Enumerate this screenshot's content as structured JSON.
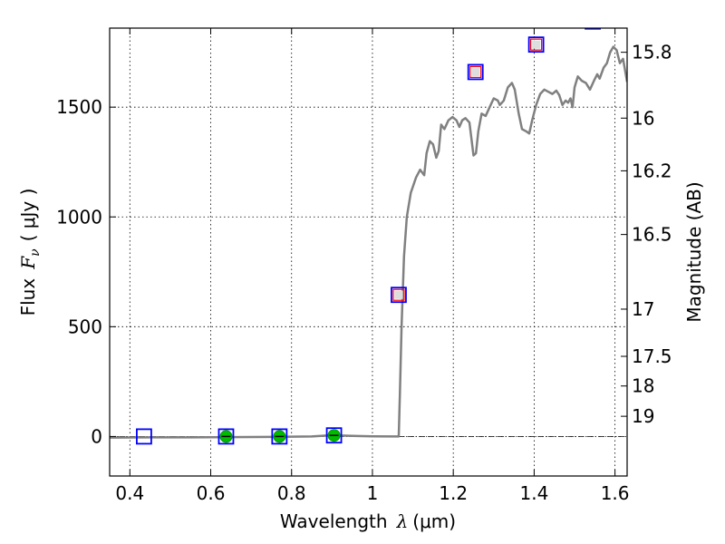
{
  "chart_data": {
    "type": "scatter",
    "title": "",
    "xlabel_prefix": "Wavelength",
    "xlabel_symbol": "λ",
    "xlabel_unit": "(μm)",
    "ylabel_prefix": "Flux",
    "ylabel_symbol": "F",
    "ylabel_subscript": "ν",
    "ylabel_unit": "( μJy )",
    "y2label": "Magnitude (AB)",
    "xlim": [
      0.35,
      1.63
    ],
    "ylim": [
      -180,
      1860
    ],
    "grid": true,
    "x_ticks": [
      0.4,
      0.6,
      0.8,
      1.0,
      1.2,
      1.4,
      1.6
    ],
    "x_tick_labels": [
      "0.4",
      "0.6",
      "0.8",
      "1",
      "1.2",
      "1.4",
      "1.6"
    ],
    "y_ticks": [
      0,
      500,
      1000,
      1500
    ],
    "y_tick_labels": [
      "0",
      "500",
      "1000",
      "1500"
    ],
    "y2_ticks": [
      {
        "label": "15.8",
        "flux": 1750
      },
      {
        "label": "16",
        "flux": 1450
      },
      {
        "label": "16.2",
        "flux": 1210
      },
      {
        "label": "16.5",
        "flux": 920
      },
      {
        "label": "17",
        "flux": 580
      },
      {
        "label": "17.5",
        "flux": 365
      },
      {
        "label": "18",
        "flux": 230
      },
      {
        "label": "19",
        "flux": 92
      }
    ],
    "colors": {
      "model": "#808080",
      "box": "#0000ff",
      "inner_square": "#ff0000",
      "observed": "#00bb00",
      "zero_line": "#000000"
    },
    "model_spectrum": [
      [
        0.35,
        -5
      ],
      [
        0.45,
        -4
      ],
      [
        0.55,
        -4
      ],
      [
        0.65,
        -3
      ],
      [
        0.75,
        -2
      ],
      [
        0.85,
        0
      ],
      [
        0.9,
        6
      ],
      [
        0.95,
        3
      ],
      [
        1.0,
        1
      ],
      [
        1.05,
        0
      ],
      [
        1.065,
        0
      ],
      [
        1.068,
        200
      ],
      [
        1.072,
        500
      ],
      [
        1.078,
        820
      ],
      [
        1.085,
        1000
      ],
      [
        1.095,
        1110
      ],
      [
        1.108,
        1180
      ],
      [
        1.118,
        1215
      ],
      [
        1.128,
        1190
      ],
      [
        1.134,
        1290
      ],
      [
        1.142,
        1345
      ],
      [
        1.15,
        1330
      ],
      [
        1.158,
        1270
      ],
      [
        1.164,
        1300
      ],
      [
        1.17,
        1420
      ],
      [
        1.178,
        1400
      ],
      [
        1.188,
        1440
      ],
      [
        1.198,
        1455
      ],
      [
        1.208,
        1440
      ],
      [
        1.215,
        1410
      ],
      [
        1.222,
        1440
      ],
      [
        1.23,
        1450
      ],
      [
        1.24,
        1430
      ],
      [
        1.25,
        1280
      ],
      [
        1.256,
        1290
      ],
      [
        1.262,
        1390
      ],
      [
        1.27,
        1470
      ],
      [
        1.28,
        1460
      ],
      [
        1.29,
        1500
      ],
      [
        1.3,
        1540
      ],
      [
        1.31,
        1530
      ],
      [
        1.315,
        1510
      ],
      [
        1.325,
        1530
      ],
      [
        1.335,
        1590
      ],
      [
        1.345,
        1610
      ],
      [
        1.352,
        1580
      ],
      [
        1.362,
        1470
      ],
      [
        1.37,
        1400
      ],
      [
        1.38,
        1390
      ],
      [
        1.388,
        1380
      ],
      [
        1.395,
        1440
      ],
      [
        1.405,
        1510
      ],
      [
        1.415,
        1560
      ],
      [
        1.425,
        1580
      ],
      [
        1.435,
        1570
      ],
      [
        1.445,
        1560
      ],
      [
        1.455,
        1575
      ],
      [
        1.462,
        1555
      ],
      [
        1.47,
        1510
      ],
      [
        1.478,
        1530
      ],
      [
        1.484,
        1520
      ],
      [
        1.49,
        1540
      ],
      [
        1.495,
        1500
      ],
      [
        1.5,
        1590
      ],
      [
        1.508,
        1640
      ],
      [
        1.518,
        1620
      ],
      [
        1.528,
        1610
      ],
      [
        1.538,
        1580
      ],
      [
        1.548,
        1620
      ],
      [
        1.556,
        1650
      ],
      [
        1.562,
        1630
      ],
      [
        1.572,
        1680
      ],
      [
        1.58,
        1700
      ],
      [
        1.588,
        1750
      ],
      [
        1.596,
        1775
      ],
      [
        1.604,
        1760
      ],
      [
        1.612,
        1700
      ],
      [
        1.62,
        1720
      ],
      [
        1.63,
        1615
      ]
    ],
    "boxes": [
      {
        "x": 0.435,
        "y": 0
      },
      {
        "x": 0.638,
        "y": 0
      },
      {
        "x": 0.77,
        "y": 0
      },
      {
        "x": 0.905,
        "y": 5
      },
      {
        "x": 1.065,
        "y": 645
      },
      {
        "x": 1.255,
        "y": 1660
      },
      {
        "x": 1.405,
        "y": 1785
      },
      {
        "x": 1.545,
        "y": 1890
      }
    ],
    "inner_squares": [
      {
        "x": 1.065,
        "y": 645
      },
      {
        "x": 1.255,
        "y": 1660
      },
      {
        "x": 1.405,
        "y": 1785
      }
    ],
    "observed": [
      {
        "x": 0.638,
        "y": 0
      },
      {
        "x": 0.77,
        "y": 0
      },
      {
        "x": 0.905,
        "y": 5
      }
    ]
  }
}
